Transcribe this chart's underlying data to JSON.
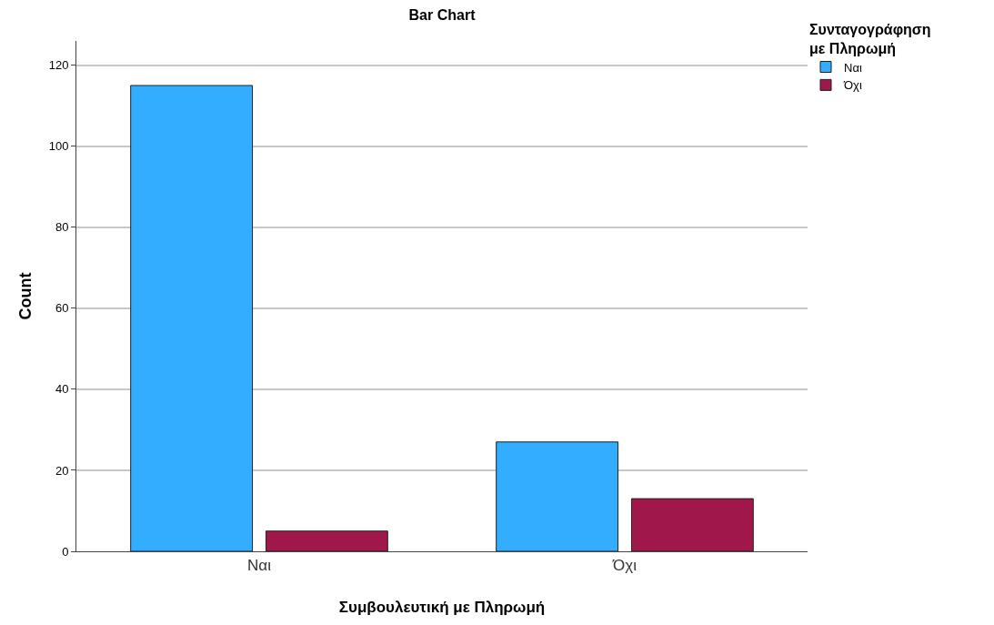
{
  "chart_data": {
    "type": "bar",
    "title": "Bar Chart",
    "xlabel": "Συμβουλευτική με Πληρωμή",
    "ylabel": "Count",
    "legend_title": "Συνταγογράφηση με Πληρωμή",
    "categories": [
      "Ναι",
      "Όχι"
    ],
    "series": [
      {
        "name": "Ναι",
        "color": "#33adff",
        "values": [
          115,
          27
        ]
      },
      {
        "name": "Όχι",
        "color": "#a0174b",
        "values": [
          5,
          13
        ]
      }
    ],
    "ylim": [
      0,
      126
    ],
    "yticks": [
      0,
      20,
      40,
      60,
      80,
      100,
      120
    ],
    "grid": "y",
    "legend": "top right"
  }
}
